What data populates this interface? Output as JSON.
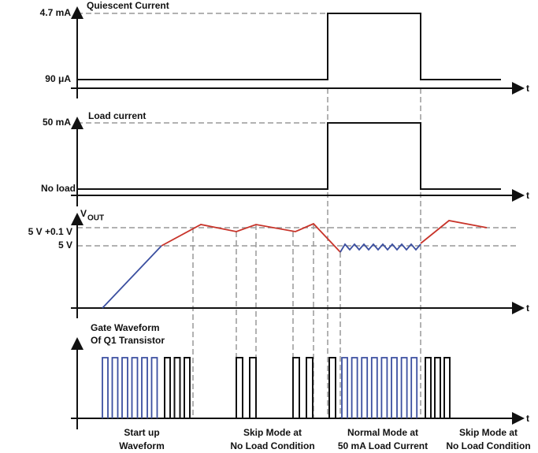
{
  "panels": [
    {
      "title": "Quiescent Current",
      "levels": [
        "4.7 mA",
        "90 μA"
      ],
      "axis": "t"
    },
    {
      "title": "Load current",
      "levels": [
        "50 mA",
        "No load"
      ],
      "axis": "t"
    },
    {
      "title": {
        "main": "V",
        "sub": "OUT"
      },
      "levels": [
        "5 V +0.1 V",
        "5 V"
      ],
      "axis": "t"
    },
    {
      "title": [
        "Gate Waveform",
        "Of Q1 Transistor"
      ],
      "axis": "t"
    }
  ],
  "phases": [
    [
      "Start up",
      "Waveform"
    ],
    [
      "Skip Mode at",
      "No Load Condition"
    ],
    [
      "Normal Mode at",
      "50 mA Load Current"
    ],
    [
      "Skip Mode at",
      "No Load Condition"
    ]
  ]
}
